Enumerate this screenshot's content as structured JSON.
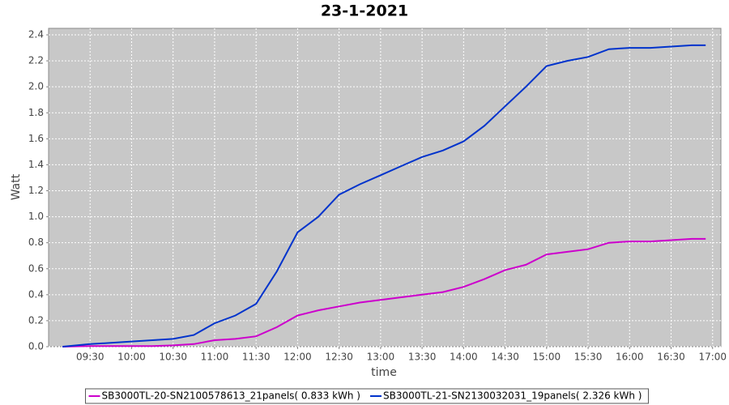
{
  "chart_data": {
    "type": "line",
    "title": "23-1-2021",
    "x_label": "time",
    "y_label": "Watt",
    "x": [
      "09:10",
      "09:30",
      "09:45",
      "10:00",
      "10:15",
      "10:30",
      "10:45",
      "11:00",
      "11:15",
      "11:30",
      "11:45",
      "12:00",
      "12:15",
      "12:30",
      "12:45",
      "13:00",
      "13:15",
      "13:30",
      "13:45",
      "14:00",
      "14:15",
      "14:30",
      "14:45",
      "15:00",
      "15:15",
      "15:30",
      "15:45",
      "16:00",
      "16:15",
      "16:30",
      "16:45",
      "16:55"
    ],
    "series": [
      {
        "name": "SB3000TL-20-SN2100578613_21panels( 0.833 kWh )",
        "color": "#cc00cc",
        "values": [
          0,
          0.005,
          0.005,
          0.005,
          0.005,
          0.01,
          0.02,
          0.05,
          0.06,
          0.08,
          0.15,
          0.24,
          0.28,
          0.31,
          0.34,
          0.36,
          0.38,
          0.4,
          0.42,
          0.46,
          0.52,
          0.59,
          0.63,
          0.71,
          0.73,
          0.75,
          0.8,
          0.81,
          0.81,
          0.82,
          0.83,
          0.83
        ]
      },
      {
        "name": "SB3000TL-21-SN2130032031_19panels( 2.326 kWh )",
        "color": "#0033cc",
        "values": [
          0,
          0.02,
          0.03,
          0.04,
          0.05,
          0.06,
          0.09,
          0.18,
          0.24,
          0.33,
          0.58,
          0.88,
          1.0,
          1.17,
          1.25,
          1.32,
          1.39,
          1.46,
          1.51,
          1.58,
          1.7,
          1.85,
          2.0,
          2.16,
          2.2,
          2.23,
          2.29,
          2.3,
          2.3,
          2.31,
          2.32,
          2.32
        ]
      }
    ],
    "xlim": [
      "09:00",
      "17:06"
    ],
    "xticks": [
      "09:30",
      "10:00",
      "10:30",
      "11:00",
      "11:30",
      "12:00",
      "12:30",
      "13:00",
      "13:30",
      "14:00",
      "14:30",
      "15:00",
      "15:30",
      "16:00",
      "16:30",
      "17:00"
    ],
    "ylim": [
      0,
      2.45
    ],
    "yticks": [
      {
        "value": 0,
        "label": "0.0"
      },
      0.2,
      0.4,
      0.6,
      0.8,
      {
        "value": 1,
        "label": "1.0"
      },
      1.2,
      1.4,
      1.6,
      1.8,
      {
        "value": 2,
        "label": "2.0"
      },
      2.2,
      2.4
    ],
    "grid": true,
    "legend": "bottom"
  }
}
